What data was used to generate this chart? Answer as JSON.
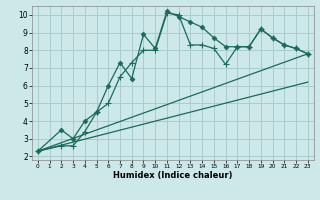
{
  "xlabel": "Humidex (Indice chaleur)",
  "background_color": "#cce8e8",
  "grid_color": "#aacccc",
  "line_color": "#1a6b5a",
  "xlim": [
    -0.5,
    23.5
  ],
  "ylim": [
    1.8,
    10.5
  ],
  "xticks": [
    0,
    1,
    2,
    3,
    4,
    5,
    6,
    7,
    8,
    9,
    10,
    11,
    12,
    13,
    14,
    15,
    16,
    17,
    18,
    19,
    20,
    21,
    22,
    23
  ],
  "yticks": [
    2,
    3,
    4,
    5,
    6,
    7,
    8,
    9,
    10
  ],
  "series1_x": [
    0,
    2,
    3,
    4,
    5,
    6,
    7,
    8,
    9,
    10,
    11,
    12,
    13,
    14,
    15,
    16,
    17,
    18,
    19,
    20,
    21,
    22,
    23
  ],
  "series1_y": [
    2.3,
    3.5,
    3.0,
    4.0,
    4.5,
    6.0,
    7.3,
    6.4,
    8.9,
    8.1,
    10.2,
    9.9,
    9.6,
    9.3,
    8.7,
    8.2,
    8.2,
    8.2,
    9.2,
    8.7,
    8.3,
    8.1,
    7.8
  ],
  "series2_x": [
    0,
    2,
    3,
    4,
    5,
    6,
    7,
    8,
    9,
    10,
    11,
    12,
    13,
    14,
    15,
    16,
    17,
    18,
    19,
    20,
    21,
    22,
    23
  ],
  "series2_y": [
    2.3,
    2.6,
    2.6,
    3.4,
    4.5,
    5.0,
    6.5,
    7.3,
    8.0,
    8.0,
    10.1,
    10.0,
    8.3,
    8.3,
    8.1,
    7.2,
    8.2,
    8.2,
    9.2,
    8.7,
    8.3,
    8.1,
    7.8
  ],
  "line1_x": [
    0,
    23
  ],
  "line1_y": [
    2.3,
    7.8
  ],
  "line2_x": [
    0,
    23
  ],
  "line2_y": [
    2.3,
    6.2
  ]
}
